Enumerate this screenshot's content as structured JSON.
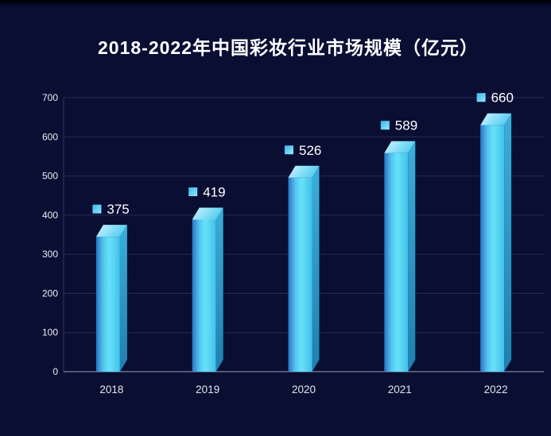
{
  "chart_data": {
    "type": "bar",
    "title": "2018-2022年中国彩妆行业市场规模（亿元）",
    "categories": [
      "2018",
      "2019",
      "2020",
      "2021",
      "2022"
    ],
    "values": [
      375,
      419,
      526,
      589,
      660
    ],
    "series_name": "市场规模",
    "unit": "亿元",
    "xlabel": "",
    "ylabel": "",
    "ylim": [
      0,
      700
    ],
    "ytick_step": 100,
    "yticks": [
      0,
      100,
      200,
      300,
      400,
      500,
      600,
      700
    ],
    "grid": "horizontal",
    "legend_position": "none",
    "data_labels_visible": true,
    "bar_style": "3d-column"
  },
  "colors": {
    "background": "#0a0e33",
    "title_text": "#ffffff",
    "grid_line": "#262c58",
    "y_axis_line": "#303765",
    "x_axis_line": "#9aa0b5",
    "y_tick_text": "#eceef5",
    "x_tick_text": "#e3e6ef",
    "value_label_text": "#ffffff",
    "bar_front_left": "#2c72c8",
    "bar_front_mid": "#68e2fa",
    "bar_front_right": "#41c0e8",
    "bar_side_top": "#3aaeda",
    "bar_side_bottom": "#1e7fb2",
    "bar_top_light": "#d2f4fe",
    "bar_top_dark": "#55ccf0",
    "marker_light": "#8ee9ff",
    "marker_dark": "#3fb6e8"
  }
}
